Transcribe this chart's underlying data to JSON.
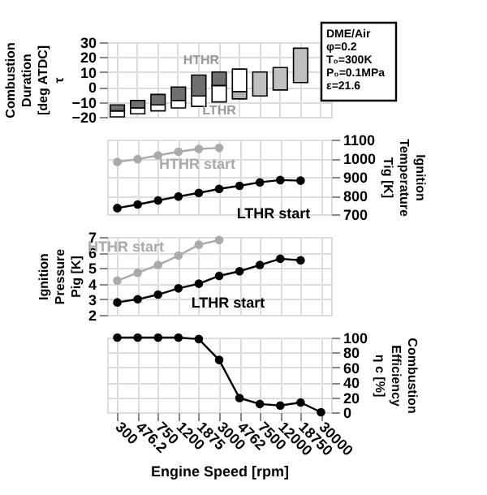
{
  "chart_data": [
    {
      "type": "bar",
      "categories": [
        "300",
        "476.2",
        "750",
        "1200",
        "1875",
        "3000",
        "4762",
        "7500",
        "12000",
        "18750",
        "30000"
      ],
      "ylabel": "Combustion\nDuration\n[deg ATDC]\nτ",
      "ylim": [
        -20,
        30
      ],
      "yticks": [
        -20,
        -10,
        0,
        10,
        20,
        30
      ],
      "grid": true,
      "tick_labels": "y",
      "series": [
        {
          "base": [
            -20,
            -18,
            -16,
            -14,
            -13,
            -10,
            -8,
            null,
            null,
            null,
            null
          ],
          "values": [
            4,
            4,
            4,
            5,
            7,
            11,
            5,
            null,
            null,
            null,
            null
          ],
          "colors": [
            "#ffffff",
            "#ffffff",
            "#ffffff",
            "#ffffff",
            "#ffffff",
            "#ffffff",
            "#b0b0b0",
            "#ffffff",
            "#ffffff",
            "#ffffff",
            "#ffffff"
          ]
        },
        {
          "base": [
            -16,
            -14,
            -12,
            -9,
            -6,
            1,
            -3,
            -6,
            -2,
            3,
            null
          ],
          "values": [
            4,
            5,
            7,
            9,
            14,
            9,
            15,
            16,
            15,
            23,
            null
          ],
          "colors": [
            "#707070",
            "#707070",
            "#707070",
            "#707070",
            "#707070",
            "#707070",
            "#ffffff",
            "#c0c0c0",
            "#c0c0c0",
            "#c0c0c0",
            "#c0c0c0"
          ]
        }
      ],
      "annotations": [
        "HTHR",
        "LTHR",
        "DME/Air",
        "φ=0.2",
        "T₀=300K",
        "P₀=0.1MPa",
        "ε=21.6"
      ]
    },
    {
      "type": "line",
      "categories": [
        "300",
        "476.2",
        "750",
        "1200",
        "1875",
        "3000",
        "4762",
        "7500",
        "12000",
        "18750",
        "30000"
      ],
      "y2label": "Ignition\nTemperature\nTig [K]",
      "y2lim": [
        700,
        1100
      ],
      "y2ticks": [
        700,
        800,
        900,
        1000,
        1100
      ],
      "grid": true,
      "tick_labels": "y",
      "marker": "circle",
      "line_style": "solid",
      "series": [
        {
          "name": "HTHR  start",
          "color": "#aaaaaa",
          "axis": "y2",
          "values": [
            980,
            995,
            1015,
            1035,
            1050,
            1055,
            null,
            null,
            null,
            null,
            null
          ]
        },
        {
          "name": "LTHR  start",
          "color": "#000000",
          "axis": "y2",
          "values": [
            733,
            752,
            774,
            795,
            814,
            836,
            852,
            871,
            883,
            880,
            null
          ]
        }
      ]
    },
    {
      "type": "line",
      "categories": [
        "300",
        "476.2",
        "750",
        "1200",
        "1875",
        "3000",
        "4762",
        "7500",
        "12000",
        "18750",
        "30000"
      ],
      "ylabel": "Ignition\nPressure\nPig [K]",
      "ylim": [
        2,
        7
      ],
      "yticks": [
        2,
        3,
        4,
        5,
        6,
        7
      ],
      "grid": true,
      "tick_labels": "y",
      "marker": "circle",
      "line_style": "solid",
      "series": [
        {
          "name": "HTHR  start",
          "color": "#aaaaaa",
          "values": [
            4.2,
            4.7,
            5.2,
            5.8,
            6.5,
            6.8,
            null,
            null,
            null,
            null,
            null
          ]
        },
        {
          "name": "LTHR  start",
          "color": "#000000",
          "values": [
            2.8,
            3.0,
            3.3,
            3.7,
            4.0,
            4.5,
            4.8,
            5.2,
            5.6,
            5.5,
            null
          ]
        }
      ]
    },
    {
      "type": "line",
      "categories": [
        "300",
        "476.2",
        "750",
        "1200",
        "1875",
        "3000",
        "4762",
        "7500",
        "12000",
        "18750",
        "30000"
      ],
      "xlabel": "Engine  Speed [rpm]",
      "y2label": "Combustion\nEfficiency\nη c [%]",
      "y2lim": [
        0,
        100
      ],
      "y2ticks": [
        0,
        20,
        40,
        60,
        80,
        100
      ],
      "grid": true,
      "marker": "circle",
      "line_style": "solid",
      "series": [
        {
          "color": "#000000",
          "axis": "y2",
          "values": [
            100,
            100,
            100,
            100,
            98,
            70,
            19,
            11,
            9,
            13,
            0
          ]
        }
      ]
    }
  ]
}
